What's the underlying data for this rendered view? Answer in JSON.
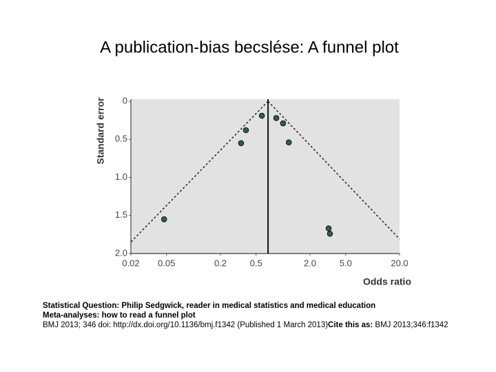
{
  "chart_data": {
    "type": "scatter",
    "title": "A publication-bias becslése: A funnel plot",
    "x_label": "Odds ratio",
    "y_label": "Standard error",
    "x_log": true,
    "y_reversed": true,
    "xlim": [
      0.02,
      20
    ],
    "ylim": [
      0,
      2
    ],
    "xticks": [
      0.02,
      0.05,
      0.2,
      0.5,
      {
        "value": 2,
        "label": "2.0"
      },
      {
        "value": 5,
        "label": "5.0"
      },
      {
        "value": 20,
        "label": "20.0"
      }
    ],
    "yticks": [
      0,
      0.5,
      {
        "value": 1,
        "label": "1.0"
      },
      1.5,
      {
        "value": 2,
        "label": "2.0"
      }
    ],
    "color": "#2f5c5a",
    "background": "#e2e2e2",
    "x": [
      0.047,
      0.34,
      0.385,
      0.58,
      0.84,
      1.0,
      1.16,
      3.23,
      3.34
    ],
    "values": [
      1.55,
      0.55,
      0.38,
      0.19,
      0.22,
      0.29,
      0.54,
      1.67,
      1.74
    ],
    "pooled_odds_ratio": 0.68,
    "funnel_left": {
      "x": [
        0.68,
        0.02
      ],
      "y": [
        0,
        1.85
      ]
    },
    "funnel_right": {
      "x": [
        0.68,
        20
      ],
      "y": [
        0,
        1.81
      ]
    }
  },
  "caption": {
    "line1": "Statistical Question: Philip Sedgwick, reader in medical statistics and medical education",
    "line2": "Meta-analyses: how to read a funnel plot",
    "line3": [
      "BMJ 2013; 346 doi: http://dx.doi.org/10.1136/bmj.f1342 (Published 1 March 2013)",
      "Cite this as:",
      " BMJ 2013;346:f1342"
    ]
  }
}
